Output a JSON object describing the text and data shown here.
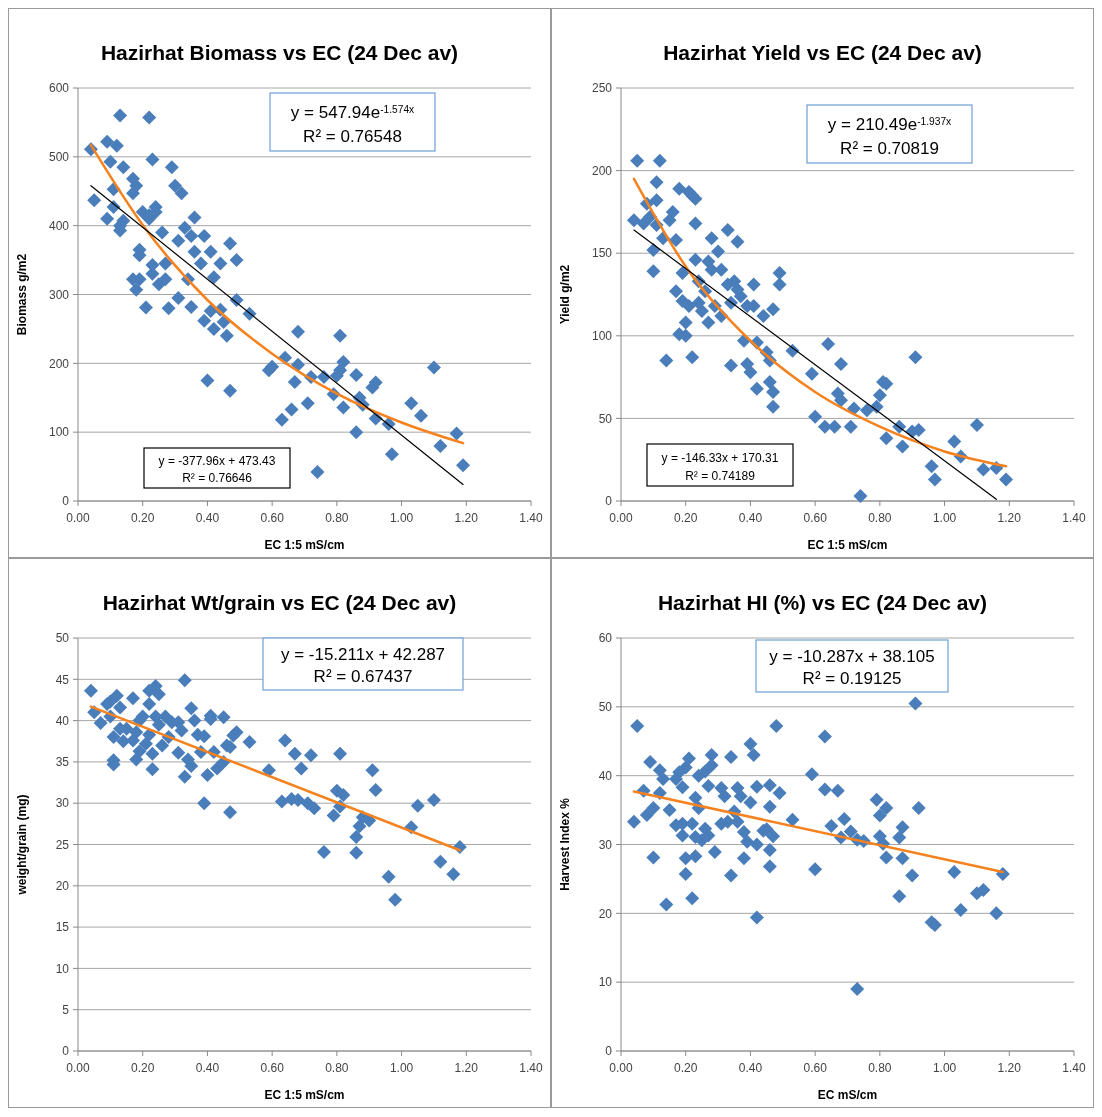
{
  "chart_data": [
    {
      "type": "scatter",
      "title": "Hazirhat Biomass vs EC (24 Dec av)",
      "xlabel": "EC 1:5 mS/cm",
      "ylabel": "Biomass g/m2",
      "xlim": [
        0,
        1.4
      ],
      "ylim": [
        0,
        600
      ],
      "xticks": [
        {
          "value": 0,
          "label": "0.00"
        },
        {
          "value": 0.2,
          "label": "0.20"
        },
        {
          "value": 0.4,
          "label": "0.40"
        },
        {
          "value": 0.6,
          "label": "0.60"
        },
        {
          "value": 0.8,
          "label": "0.80"
        },
        {
          "value": 1,
          "label": "1.00"
        },
        {
          "value": 1.2,
          "label": "1.20"
        },
        {
          "value": 1.4,
          "label": "1.40"
        }
      ],
      "yticks": [
        0,
        100,
        200,
        300,
        400,
        500,
        600
      ],
      "grid": "y",
      "annotations": [
        "y = 547.94e$^{-1.574x}$",
        "R² = 0.76548",
        "y = -377.96x + 473.43",
        "R² = 0.76646"
      ],
      "series": [
        {
          "marker": "diamond",
          "color": "#4a7ebb",
          "x": [
            0.04,
            0.05,
            0.09,
            0.09,
            0.1,
            0.11,
            0.11,
            0.12,
            0.13,
            0.13,
            0.13,
            0.14,
            0.14,
            0.17,
            0.17,
            0.17,
            0.18,
            0.18,
            0.19,
            0.19,
            0.19,
            0.2,
            0.21,
            0.22,
            0.22,
            0.22,
            0.23,
            0.23,
            0.23,
            0.24,
            0.24,
            0.25,
            0.26,
            0.27,
            0.27,
            0.28,
            0.29,
            0.3,
            0.31,
            0.31,
            0.32,
            0.33,
            0.34,
            0.35,
            0.35,
            0.36,
            0.36,
            0.38,
            0.39,
            0.39,
            0.4,
            0.41,
            0.41,
            0.42,
            0.42,
            0.44,
            0.44,
            0.45,
            0.46,
            0.47,
            0.47,
            0.49,
            0.49,
            0.53,
            0.59,
            0.6,
            0.63,
            0.64,
            0.66,
            0.67,
            0.68,
            0.68,
            0.71,
            0.72,
            0.74,
            0.76,
            0.79,
            0.8,
            0.81,
            0.81,
            0.82,
            0.82,
            0.86,
            0.86,
            0.87,
            0.88,
            0.91,
            0.92,
            0.92,
            0.96,
            0.97,
            1.03,
            1.06,
            1.1,
            1.12,
            1.17,
            1.19
          ],
          "values": [
            511,
            437,
            522,
            410,
            493,
            427,
            453,
            516,
            560,
            400,
            393,
            407,
            485,
            447,
            468,
            322,
            307,
            458,
            365,
            357,
            322,
            420,
            281,
            557,
            410,
            415,
            496,
            343,
            330,
            427,
            420,
            315,
            390,
            345,
            322,
            280,
            485,
            458,
            378,
            295,
            447,
            397,
            322,
            282,
            385,
            412,
            362,
            345,
            385,
            262,
            175,
            362,
            276,
            325,
            250,
            345,
            278,
            260,
            240,
            160,
            374,
            350,
            292,
            272,
            190,
            195,
            118,
            208,
            133,
            173,
            246,
            198,
            142,
            180,
            42,
            180,
            155,
            182,
            240,
            190,
            202,
            136,
            183,
            100,
            150,
            140,
            165,
            172,
            120,
            112,
            68,
            142,
            124,
            194,
            80,
            98,
            52
          ]
        },
        {
          "type": "line",
          "marker": "none",
          "color": "#f5821f",
          "x": [
            0.04,
            0.2,
            0.4,
            0.6,
            0.8,
            1.0,
            1.19
          ],
          "values": [
            517,
            401,
            292,
            214,
            156,
            114,
            84
          ]
        },
        {
          "type": "line",
          "marker": "none",
          "color": "#000000",
          "x": [
            0.04,
            1.19
          ],
          "values": [
            458,
            24
          ]
        }
      ]
    },
    {
      "type": "scatter",
      "title": "Hazirhat Yield vs EC (24 Dec av)",
      "xlabel": "EC 1:5 mS/cm",
      "ylabel": "Yield g/m2",
      "xlim": [
        0,
        1.4
      ],
      "ylim": [
        0,
        250
      ],
      "xticks": [
        {
          "value": 0,
          "label": "0.00"
        },
        {
          "value": 0.2,
          "label": "0.20"
        },
        {
          "value": 0.4,
          "label": "0.40"
        },
        {
          "value": 0.6,
          "label": "0.60"
        },
        {
          "value": 0.8,
          "label": "0.80"
        },
        {
          "value": 1,
          "label": "1.00"
        },
        {
          "value": 1.2,
          "label": "1.20"
        },
        {
          "value": 1.4,
          "label": "1.40"
        }
      ],
      "yticks": [
        0,
        50,
        100,
        150,
        200,
        250
      ],
      "grid": "y",
      "annotations": [
        "y = 210.49e$^{-1.937x}$",
        "R² = 0.70819",
        "y = -146.33x + 170.31",
        "R² = 0.74189"
      ],
      "series": [
        {
          "marker": "diamond",
          "color": "#4a7ebb",
          "x": [
            0.04,
            0.05,
            0.07,
            0.08,
            0.09,
            0.1,
            0.1,
            0.11,
            0.11,
            0.11,
            0.12,
            0.13,
            0.14,
            0.15,
            0.16,
            0.17,
            0.17,
            0.18,
            0.18,
            0.19,
            0.19,
            0.2,
            0.2,
            0.21,
            0.21,
            0.22,
            0.22,
            0.23,
            0.23,
            0.23,
            0.24,
            0.24,
            0.25,
            0.26,
            0.27,
            0.27,
            0.28,
            0.28,
            0.29,
            0.3,
            0.31,
            0.31,
            0.33,
            0.33,
            0.34,
            0.34,
            0.35,
            0.36,
            0.36,
            0.37,
            0.38,
            0.39,
            0.39,
            0.4,
            0.41,
            0.41,
            0.42,
            0.42,
            0.44,
            0.45,
            0.46,
            0.46,
            0.47,
            0.47,
            0.47,
            0.49,
            0.49,
            0.53,
            0.59,
            0.6,
            0.63,
            0.64,
            0.66,
            0.67,
            0.68,
            0.68,
            0.71,
            0.72,
            0.74,
            0.76,
            0.79,
            0.8,
            0.81,
            0.82,
            0.82,
            0.86,
            0.87,
            0.9,
            0.91,
            0.92,
            0.96,
            0.97,
            1.03,
            1.05,
            1.1,
            1.12,
            1.16,
            1.19
          ],
          "values": [
            170,
            206,
            168,
            180,
            172,
            152,
            139,
            167,
            193,
            182,
            206,
            159,
            85,
            170,
            175,
            127,
            158,
            189,
            101,
            138,
            121,
            108,
            100,
            187,
            118,
            185,
            87,
            183,
            146,
            168,
            133,
            120,
            115,
            127,
            145,
            108,
            140,
            159,
            118,
            151,
            140,
            112,
            164,
            131,
            120,
            82,
            133,
            157,
            128,
            124,
            97,
            118,
            83,
            78,
            131,
            118,
            96,
            68,
            112,
            90,
            85,
            72,
            66,
            57,
            116,
            138,
            131,
            91,
            77,
            51,
            45,
            95,
            45,
            65,
            83,
            61,
            45,
            56,
            3,
            55,
            57,
            64,
            72,
            71,
            38,
            45,
            33,
            42,
            87,
            43,
            21,
            13,
            36,
            27,
            46,
            19,
            20,
            13
          ]
        },
        {
          "type": "line",
          "marker": "none",
          "color": "#f5821f",
          "x": [
            0.04,
            0.2,
            0.4,
            0.6,
            0.8,
            1.0,
            1.19
          ],
          "values": [
            195,
            142,
            97,
            66,
            45,
            30,
            21
          ]
        },
        {
          "type": "line",
          "marker": "none",
          "color": "#000000",
          "x": [
            0.04,
            1.16
          ],
          "values": [
            164,
            1
          ]
        }
      ]
    },
    {
      "type": "scatter",
      "title": "Hazirhat Wt/grain vs EC (24 Dec av)",
      "xlabel": "EC 1:5 mS/cm",
      "ylabel": "weight/grain (mg)",
      "xlim": [
        0,
        1.4
      ],
      "ylim": [
        0,
        50
      ],
      "xticks": [
        {
          "value": 0,
          "label": "0.00"
        },
        {
          "value": 0.2,
          "label": "0.20"
        },
        {
          "value": 0.4,
          "label": "0.40"
        },
        {
          "value": 0.6,
          "label": "0.60"
        },
        {
          "value": 0.8,
          "label": "0.80"
        },
        {
          "value": 1,
          "label": "1.00"
        },
        {
          "value": 1.2,
          "label": "1.20"
        },
        {
          "value": 1.4,
          "label": "1.40"
        }
      ],
      "yticks": [
        0,
        5,
        10,
        15,
        20,
        25,
        30,
        35,
        40,
        45,
        50
      ],
      "grid": "y",
      "annotations": [
        "y = -15.211x + 42.287",
        "R² = 0.67437"
      ],
      "series": [
        {
          "marker": "diamond",
          "color": "#4a7ebb",
          "x": [
            0.04,
            0.05,
            0.07,
            0.09,
            0.1,
            0.1,
            0.11,
            0.11,
            0.11,
            0.12,
            0.13,
            0.13,
            0.14,
            0.15,
            0.17,
            0.17,
            0.18,
            0.18,
            0.19,
            0.19,
            0.2,
            0.21,
            0.22,
            0.22,
            0.22,
            0.23,
            0.23,
            0.24,
            0.24,
            0.25,
            0.25,
            0.26,
            0.27,
            0.28,
            0.29,
            0.31,
            0.31,
            0.32,
            0.33,
            0.33,
            0.34,
            0.35,
            0.35,
            0.36,
            0.37,
            0.38,
            0.39,
            0.39,
            0.4,
            0.41,
            0.41,
            0.42,
            0.43,
            0.45,
            0.45,
            0.46,
            0.47,
            0.47,
            0.48,
            0.49,
            0.53,
            0.59,
            0.63,
            0.64,
            0.66,
            0.67,
            0.68,
            0.69,
            0.71,
            0.72,
            0.73,
            0.76,
            0.79,
            0.8,
            0.81,
            0.81,
            0.82,
            0.86,
            0.86,
            0.87,
            0.88,
            0.9,
            0.91,
            0.92,
            0.96,
            0.98,
            1.03,
            1.05,
            1.1,
            1.12,
            1.16,
            1.18
          ],
          "values": [
            43.6,
            41,
            39.7,
            42,
            42.3,
            40.5,
            38,
            35.2,
            34.7,
            43,
            41.6,
            39,
            37.5,
            39,
            42.7,
            37.6,
            35.3,
            38.6,
            40,
            36.3,
            40.5,
            37.2,
            43.6,
            42,
            38.3,
            36,
            34.1,
            44.2,
            40.5,
            43.2,
            39.5,
            37,
            40.5,
            38,
            39.8,
            39.8,
            36.1,
            38.8,
            44.9,
            33.2,
            35.3,
            34.5,
            41.5,
            40,
            38.3,
            36.2,
            38.1,
            30,
            33.4,
            40.6,
            40.2,
            36.2,
            34.2,
            35,
            40.4,
            37,
            28.9,
            36.8,
            38.2,
            38.6,
            37.4,
            34,
            30.2,
            37.6,
            30.5,
            36,
            30.4,
            34.2,
            30,
            35.8,
            29.4,
            24.1,
            28.5,
            31.5,
            36,
            29.6,
            31,
            24,
            25.9,
            27.2,
            28.3,
            27.9,
            34,
            31.6,
            21.1,
            18.3,
            27.1,
            29.7,
            30.4,
            22.9,
            21.4,
            24.7
          ]
        },
        {
          "type": "line",
          "color": "#f5821f",
          "x": [
            0.04,
            1.18
          ],
          "values": [
            41.7,
            24.3
          ],
          "marker": "none"
        }
      ]
    },
    {
      "type": "scatter",
      "title": "Hazirhat HI (%) vs EC (24 Dec av)",
      "xlabel": "EC mS/cm",
      "ylabel": "Harvest Index %",
      "xlim": [
        0,
        1.4
      ],
      "ylim": [
        0,
        60
      ],
      "xticks": [
        {
          "value": 0,
          "label": "0.00"
        },
        {
          "value": 0.2,
          "label": "0.20"
        },
        {
          "value": 0.4,
          "label": "0.40"
        },
        {
          "value": 0.6,
          "label": "0.60"
        },
        {
          "value": 0.8,
          "label": "0.80"
        },
        {
          "value": 1,
          "label": "1.00"
        },
        {
          "value": 1.2,
          "label": "1.20"
        },
        {
          "value": 1.4,
          "label": "1.40"
        }
      ],
      "yticks": [
        0,
        10,
        20,
        30,
        40,
        50,
        60
      ],
      "grid": "y",
      "annotations": [
        "y = -10.287x + 38.105",
        "R² = 0.19125"
      ],
      "series": [
        {
          "marker": "diamond",
          "color": "#4a7ebb",
          "x": [
            0.04,
            0.05,
            0.07,
            0.08,
            0.09,
            0.1,
            0.1,
            0.12,
            0.12,
            0.13,
            0.14,
            0.15,
            0.17,
            0.17,
            0.18,
            0.19,
            0.19,
            0.19,
            0.2,
            0.2,
            0.2,
            0.21,
            0.22,
            0.22,
            0.23,
            0.23,
            0.23,
            0.24,
            0.24,
            0.25,
            0.26,
            0.26,
            0.27,
            0.27,
            0.28,
            0.28,
            0.29,
            0.31,
            0.31,
            0.32,
            0.33,
            0.34,
            0.34,
            0.35,
            0.36,
            0.36,
            0.37,
            0.38,
            0.38,
            0.39,
            0.4,
            0.4,
            0.41,
            0.42,
            0.42,
            0.42,
            0.44,
            0.45,
            0.46,
            0.46,
            0.46,
            0.46,
            0.47,
            0.48,
            0.49,
            0.53,
            0.59,
            0.6,
            0.63,
            0.63,
            0.65,
            0.67,
            0.68,
            0.69,
            0.71,
            0.73,
            0.73,
            0.75,
            0.79,
            0.8,
            0.8,
            0.81,
            0.82,
            0.82,
            0.86,
            0.86,
            0.87,
            0.87,
            0.9,
            0.91,
            0.92,
            0.96,
            0.97,
            1.03,
            1.05,
            1.1,
            1.12,
            1.16,
            1.18
          ],
          "values": [
            33.3,
            47.2,
            37.8,
            34.3,
            42,
            28.1,
            35.3,
            40.8,
            37.5,
            39.5,
            21.3,
            35,
            39.5,
            32.8,
            40.5,
            31.3,
            38.3,
            33,
            28,
            25.7,
            41.2,
            42.5,
            33,
            22.2,
            28.3,
            36.8,
            31.1,
            40,
            35.3,
            30.6,
            40.6,
            32.3,
            38.5,
            31.3,
            43,
            41.5,
            28.9,
            33,
            38.2,
            37,
            33.3,
            25.5,
            42.7,
            34.8,
            38.2,
            33.3,
            37,
            31.8,
            28,
            30.4,
            44.6,
            36.1,
            43,
            38.4,
            30,
            19.4,
            32,
            32.2,
            26.8,
            29.2,
            35.5,
            38.6,
            31.2,
            47.2,
            37.5,
            33.6,
            40.2,
            26.4,
            45.7,
            38,
            32.7,
            37.8,
            31,
            33.7,
            31.9,
            9,
            30.7,
            30.5,
            36.5,
            34.2,
            31.2,
            30.1,
            35.3,
            28.1,
            22.5,
            31,
            32.5,
            28,
            25.5,
            50.5,
            35.3,
            18.7,
            18.3,
            26,
            20.5,
            22.9,
            23.4,
            20,
            25.7
          ]
        },
        {
          "type": "line",
          "color": "#f5821f",
          "x": [
            0.04,
            1.18
          ],
          "values": [
            37.7,
            26.0
          ],
          "marker": "none"
        }
      ]
    }
  ]
}
